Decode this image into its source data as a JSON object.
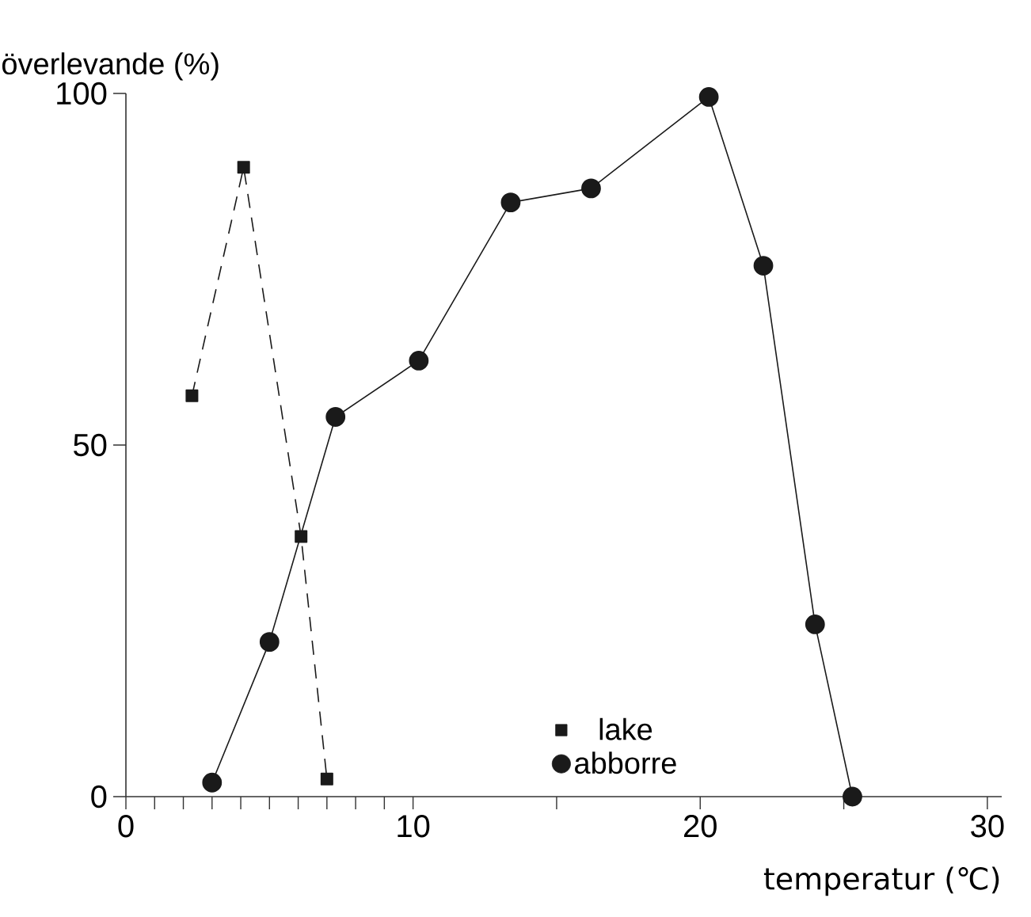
{
  "chart_data": {
    "type": "line",
    "xlabel": "temperatur (℃)",
    "ylabel": "överlevande (%)",
    "xlim": [
      0,
      30.5
    ],
    "ylim": [
      0,
      100
    ],
    "xticks": [
      0,
      {
        "value": 1,
        "label": null
      },
      {
        "value": 2,
        "label": null
      },
      {
        "value": 3,
        "label": null
      },
      {
        "value": 4,
        "label": null
      },
      {
        "value": 5,
        "label": null
      },
      {
        "value": 6,
        "label": null
      },
      {
        "value": 7,
        "label": null
      },
      {
        "value": 8,
        "label": null
      },
      {
        "value": 9,
        "label": null
      },
      10,
      {
        "value": 15,
        "label": null
      },
      20,
      {
        "value": 25,
        "label": null
      },
      30
    ],
    "yticks": [
      0,
      50,
      100
    ],
    "grid": false,
    "legend": "bottom",
    "series": [
      {
        "name": "lake",
        "color": "#1a1a1a",
        "marker": "square",
        "line_style": "dashed",
        "x": [
          2.3,
          4.1,
          6.1,
          7.0
        ],
        "values": [
          57,
          89.5,
          37,
          2.5
        ]
      },
      {
        "name": "abborre",
        "color": "#1a1a1a",
        "marker": "circle",
        "line_style": "solid",
        "x": [
          3,
          5,
          7.3,
          10.2,
          13.4,
          16.2,
          20.3,
          22.2,
          24.0,
          25.3
        ],
        "values": [
          2,
          22,
          54,
          62,
          84.5,
          86.5,
          99.5,
          75.5,
          24.5,
          0
        ]
      }
    ]
  }
}
